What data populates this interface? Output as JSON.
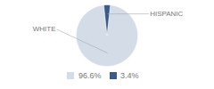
{
  "chart_data": {
    "type": "pie",
    "categories": [
      "WHITE",
      "HISPANIC"
    ],
    "values": [
      96.6,
      3.4
    ],
    "value_labels": [
      "96.6%",
      "3.4%"
    ],
    "colors": [
      "#d4dce8",
      "#3a5a8a"
    ],
    "legend": "bottom"
  }
}
